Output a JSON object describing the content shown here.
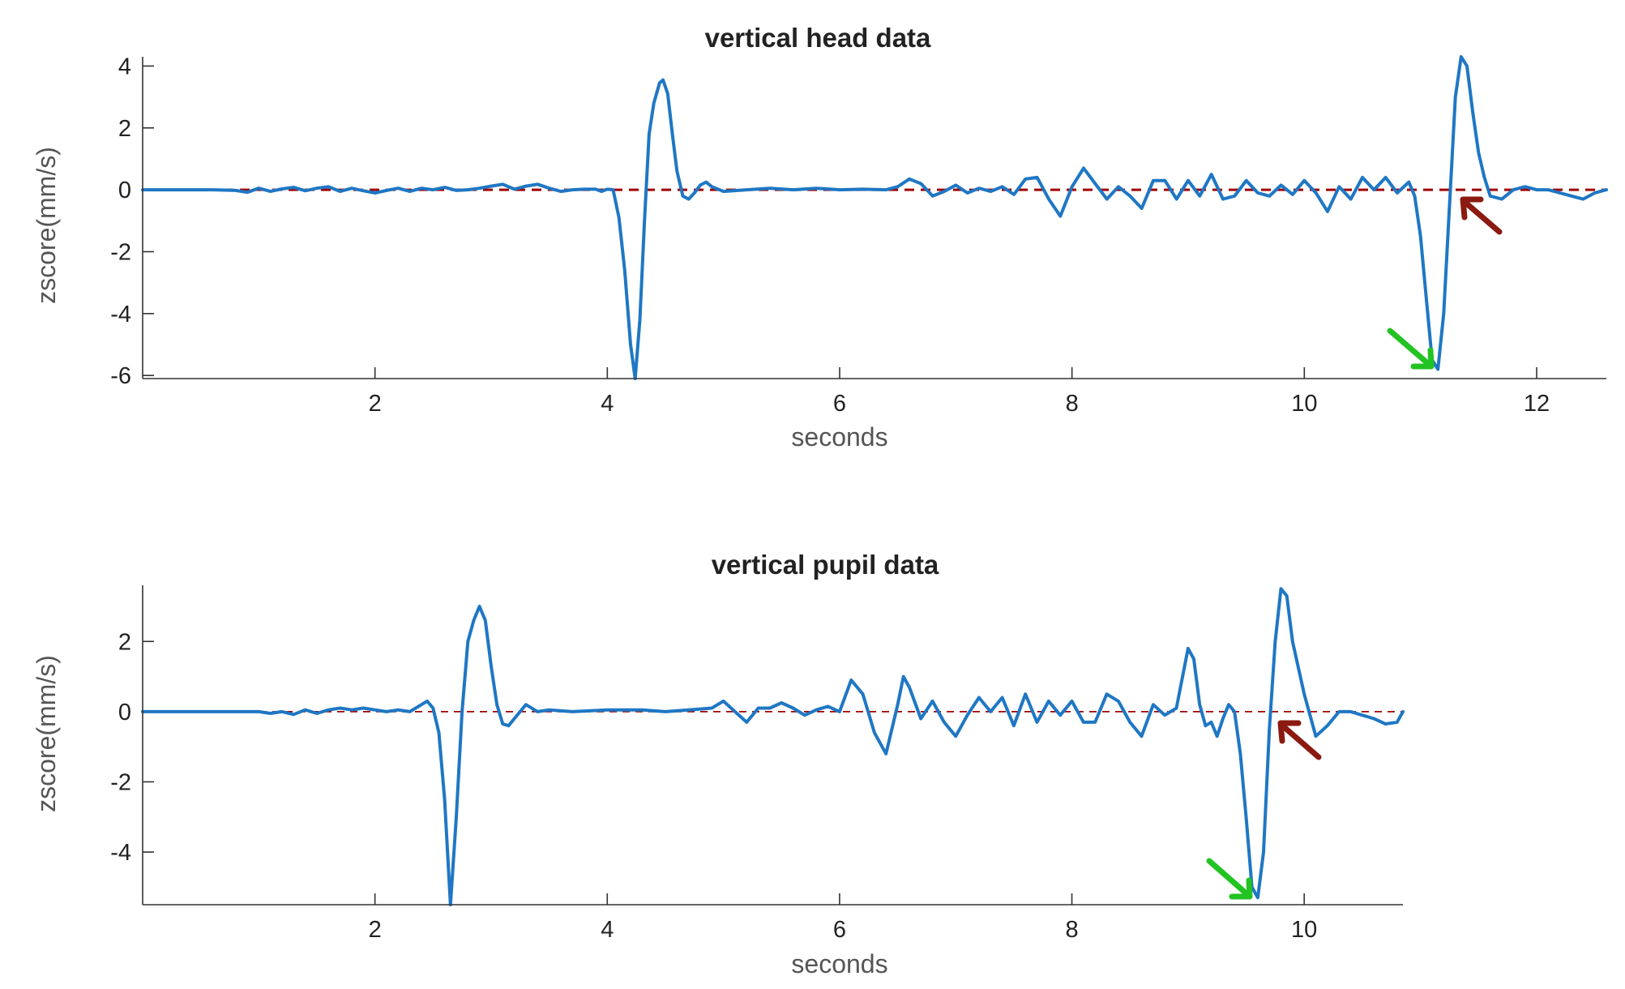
{
  "chart_data": [
    {
      "type": "line",
      "title": "vertical head data",
      "xlabel": "seconds",
      "ylabel": "zscore(mm/s)",
      "xlim": [
        0,
        12.6
      ],
      "ylim": [
        -6.1,
        4.3
      ],
      "xticks": [
        2,
        4,
        6,
        8,
        10,
        12
      ],
      "yticks": [
        -6,
        -4,
        -2,
        0,
        2,
        4
      ],
      "grid": false,
      "reference_line": {
        "y": 0,
        "color": "#a00000",
        "style": "dashed"
      },
      "series": [
        {
          "color": "#1f77c4",
          "points": [
            [
              0,
              0
            ],
            [
              0.3,
              0
            ],
            [
              0.6,
              0
            ],
            [
              0.8,
              -0.02
            ],
            [
              0.9,
              -0.08
            ],
            [
              1.0,
              0.05
            ],
            [
              1.1,
              -0.05
            ],
            [
              1.2,
              0.03
            ],
            [
              1.3,
              0.08
            ],
            [
              1.4,
              -0.03
            ],
            [
              1.5,
              0.05
            ],
            [
              1.6,
              0.1
            ],
            [
              1.7,
              -0.05
            ],
            [
              1.8,
              0.05
            ],
            [
              1.9,
              -0.03
            ],
            [
              2.0,
              -0.1
            ],
            [
              2.1,
              -0.02
            ],
            [
              2.2,
              0.05
            ],
            [
              2.3,
              -0.05
            ],
            [
              2.4,
              0.05
            ],
            [
              2.5,
              0.0
            ],
            [
              2.6,
              0.08
            ],
            [
              2.7,
              -0.02
            ],
            [
              2.8,
              0.0
            ],
            [
              2.9,
              0.05
            ],
            [
              3.0,
              0.12
            ],
            [
              3.1,
              0.18
            ],
            [
              3.2,
              0.02
            ],
            [
              3.3,
              0.12
            ],
            [
              3.4,
              0.18
            ],
            [
              3.5,
              0.05
            ],
            [
              3.6,
              -0.05
            ],
            [
              3.7,
              0.0
            ],
            [
              3.8,
              0.02
            ],
            [
              3.9,
              0.02
            ],
            [
              3.95,
              -0.05
            ],
            [
              4.0,
              0.02
            ],
            [
              4.05,
              0.0
            ],
            [
              4.1,
              -0.9
            ],
            [
              4.15,
              -2.6
            ],
            [
              4.2,
              -5.0
            ],
            [
              4.24,
              -6.1
            ],
            [
              4.28,
              -4.2
            ],
            [
              4.32,
              -1.0
            ],
            [
              4.36,
              1.8
            ],
            [
              4.4,
              2.8
            ],
            [
              4.45,
              3.45
            ],
            [
              4.48,
              3.55
            ],
            [
              4.52,
              3.1
            ],
            [
              4.56,
              1.8
            ],
            [
              4.6,
              0.6
            ],
            [
              4.65,
              -0.2
            ],
            [
              4.7,
              -0.3
            ],
            [
              4.75,
              -0.1
            ],
            [
              4.8,
              0.15
            ],
            [
              4.85,
              0.25
            ],
            [
              4.9,
              0.1
            ],
            [
              5.0,
              -0.05
            ],
            [
              5.2,
              0.0
            ],
            [
              5.4,
              0.05
            ],
            [
              5.6,
              0.0
            ],
            [
              5.8,
              0.05
            ],
            [
              6.0,
              0.0
            ],
            [
              6.2,
              0.02
            ],
            [
              6.4,
              0.0
            ],
            [
              6.5,
              0.1
            ],
            [
              6.6,
              0.35
            ],
            [
              6.7,
              0.2
            ],
            [
              6.8,
              -0.2
            ],
            [
              6.9,
              -0.05
            ],
            [
              7.0,
              0.15
            ],
            [
              7.1,
              -0.1
            ],
            [
              7.2,
              0.05
            ],
            [
              7.3,
              -0.05
            ],
            [
              7.4,
              0.1
            ],
            [
              7.5,
              -0.15
            ],
            [
              7.6,
              0.35
            ],
            [
              7.7,
              0.4
            ],
            [
              7.8,
              -0.3
            ],
            [
              7.9,
              -0.85
            ],
            [
              8.0,
              0.1
            ],
            [
              8.1,
              0.7
            ],
            [
              8.2,
              0.2
            ],
            [
              8.3,
              -0.3
            ],
            [
              8.4,
              0.1
            ],
            [
              8.5,
              -0.2
            ],
            [
              8.6,
              -0.6
            ],
            [
              8.7,
              0.3
            ],
            [
              8.8,
              0.3
            ],
            [
              8.9,
              -0.3
            ],
            [
              9.0,
              0.3
            ],
            [
              9.1,
              -0.2
            ],
            [
              9.2,
              0.5
            ],
            [
              9.3,
              -0.3
            ],
            [
              9.4,
              -0.2
            ],
            [
              9.5,
              0.3
            ],
            [
              9.6,
              -0.1
            ],
            [
              9.7,
              -0.2
            ],
            [
              9.8,
              0.15
            ],
            [
              9.9,
              -0.15
            ],
            [
              10.0,
              0.3
            ],
            [
              10.1,
              -0.1
            ],
            [
              10.2,
              -0.7
            ],
            [
              10.3,
              0.1
            ],
            [
              10.4,
              -0.3
            ],
            [
              10.5,
              0.4
            ],
            [
              10.6,
              0.0
            ],
            [
              10.7,
              0.4
            ],
            [
              10.8,
              -0.1
            ],
            [
              10.9,
              0.25
            ],
            [
              10.95,
              -0.2
            ],
            [
              11.0,
              -1.5
            ],
            [
              11.05,
              -3.5
            ],
            [
              11.1,
              -5.5
            ],
            [
              11.15,
              -5.8
            ],
            [
              11.2,
              -4.0
            ],
            [
              11.25,
              -0.5
            ],
            [
              11.3,
              3.0
            ],
            [
              11.35,
              4.3
            ],
            [
              11.4,
              4.0
            ],
            [
              11.45,
              2.5
            ],
            [
              11.5,
              1.2
            ],
            [
              11.55,
              0.4
            ],
            [
              11.6,
              -0.2
            ],
            [
              11.7,
              -0.3
            ],
            [
              11.8,
              0.0
            ],
            [
              11.9,
              0.1
            ],
            [
              12.0,
              0.0
            ],
            [
              12.1,
              0.0
            ],
            [
              12.2,
              -0.1
            ],
            [
              12.3,
              -0.2
            ],
            [
              12.4,
              -0.3
            ],
            [
              12.5,
              -0.1
            ],
            [
              12.6,
              0.0
            ]
          ]
        }
      ]
    },
    {
      "type": "line",
      "title": "vertical pupil data",
      "xlabel": "seconds",
      "ylabel": "zscore(mm/s)",
      "xlim": [
        0,
        10.85
      ],
      "ylim": [
        -5.5,
        3.6
      ],
      "xticks": [
        2,
        4,
        6,
        8,
        10
      ],
      "yticks": [
        -4,
        -2,
        0,
        2
      ],
      "grid": false,
      "reference_line": {
        "y": 0,
        "color": "#a00000",
        "style": "dashed"
      },
      "series": [
        {
          "color": "#1f77c4",
          "points": [
            [
              0,
              0
            ],
            [
              0.5,
              0
            ],
            [
              1.0,
              0.0
            ],
            [
              1.1,
              -0.05
            ],
            [
              1.2,
              0.0
            ],
            [
              1.3,
              -0.08
            ],
            [
              1.4,
              0.05
            ],
            [
              1.5,
              -0.05
            ],
            [
              1.6,
              0.05
            ],
            [
              1.7,
              0.1
            ],
            [
              1.8,
              0.05
            ],
            [
              1.9,
              0.1
            ],
            [
              2.0,
              0.05
            ],
            [
              2.1,
              0.0
            ],
            [
              2.2,
              0.05
            ],
            [
              2.3,
              0.0
            ],
            [
              2.4,
              0.2
            ],
            [
              2.45,
              0.3
            ],
            [
              2.5,
              0.1
            ],
            [
              2.55,
              -0.6
            ],
            [
              2.6,
              -2.5
            ],
            [
              2.65,
              -5.5
            ],
            [
              2.7,
              -3.0
            ],
            [
              2.75,
              0.0
            ],
            [
              2.8,
              2.0
            ],
            [
              2.85,
              2.6
            ],
            [
              2.9,
              3.0
            ],
            [
              2.95,
              2.6
            ],
            [
              3.0,
              1.3
            ],
            [
              3.05,
              0.2
            ],
            [
              3.1,
              -0.35
            ],
            [
              3.15,
              -0.4
            ],
            [
              3.2,
              -0.2
            ],
            [
              3.3,
              0.2
            ],
            [
              3.4,
              0.0
            ],
            [
              3.5,
              0.05
            ],
            [
              3.7,
              0.0
            ],
            [
              4.0,
              0.05
            ],
            [
              4.3,
              0.05
            ],
            [
              4.5,
              0.0
            ],
            [
              4.7,
              0.05
            ],
            [
              4.9,
              0.1
            ],
            [
              5.0,
              0.3
            ],
            [
              5.1,
              0.0
            ],
            [
              5.2,
              -0.3
            ],
            [
              5.3,
              0.1
            ],
            [
              5.4,
              0.1
            ],
            [
              5.5,
              0.25
            ],
            [
              5.6,
              0.1
            ],
            [
              5.7,
              -0.1
            ],
            [
              5.8,
              0.05
            ],
            [
              5.9,
              0.15
            ],
            [
              6.0,
              0.0
            ],
            [
              6.1,
              0.9
            ],
            [
              6.2,
              0.5
            ],
            [
              6.3,
              -0.6
            ],
            [
              6.4,
              -1.2
            ],
            [
              6.5,
              0.2
            ],
            [
              6.55,
              1.0
            ],
            [
              6.6,
              0.7
            ],
            [
              6.7,
              -0.2
            ],
            [
              6.8,
              0.3
            ],
            [
              6.9,
              -0.3
            ],
            [
              7.0,
              -0.7
            ],
            [
              7.1,
              -0.1
            ],
            [
              7.2,
              0.4
            ],
            [
              7.3,
              0.0
            ],
            [
              7.4,
              0.4
            ],
            [
              7.5,
              -0.4
            ],
            [
              7.6,
              0.5
            ],
            [
              7.7,
              -0.3
            ],
            [
              7.8,
              0.3
            ],
            [
              7.9,
              -0.1
            ],
            [
              8.0,
              0.3
            ],
            [
              8.1,
              -0.3
            ],
            [
              8.2,
              -0.3
            ],
            [
              8.3,
              0.5
            ],
            [
              8.4,
              0.3
            ],
            [
              8.5,
              -0.3
            ],
            [
              8.6,
              -0.7
            ],
            [
              8.7,
              0.2
            ],
            [
              8.8,
              -0.1
            ],
            [
              8.9,
              0.1
            ],
            [
              9.0,
              1.8
            ],
            [
              9.05,
              1.5
            ],
            [
              9.1,
              0.2
            ],
            [
              9.15,
              -0.4
            ],
            [
              9.2,
              -0.3
            ],
            [
              9.25,
              -0.7
            ],
            [
              9.3,
              -0.2
            ],
            [
              9.35,
              0.2
            ],
            [
              9.4,
              0.0
            ],
            [
              9.45,
              -1.2
            ],
            [
              9.5,
              -3.0
            ],
            [
              9.55,
              -5.0
            ],
            [
              9.6,
              -5.3
            ],
            [
              9.65,
              -4.0
            ],
            [
              9.7,
              -0.5
            ],
            [
              9.75,
              2.0
            ],
            [
              9.8,
              3.5
            ],
            [
              9.85,
              3.3
            ],
            [
              9.9,
              2.0
            ],
            [
              10.0,
              0.5
            ],
            [
              10.1,
              -0.7
            ],
            [
              10.2,
              -0.4
            ],
            [
              10.3,
              0.0
            ],
            [
              10.4,
              0.0
            ],
            [
              10.5,
              -0.1
            ],
            [
              10.6,
              -0.2
            ],
            [
              10.7,
              -0.35
            ],
            [
              10.8,
              -0.3
            ],
            [
              10.85,
              0.0
            ]
          ]
        }
      ]
    }
  ]
}
